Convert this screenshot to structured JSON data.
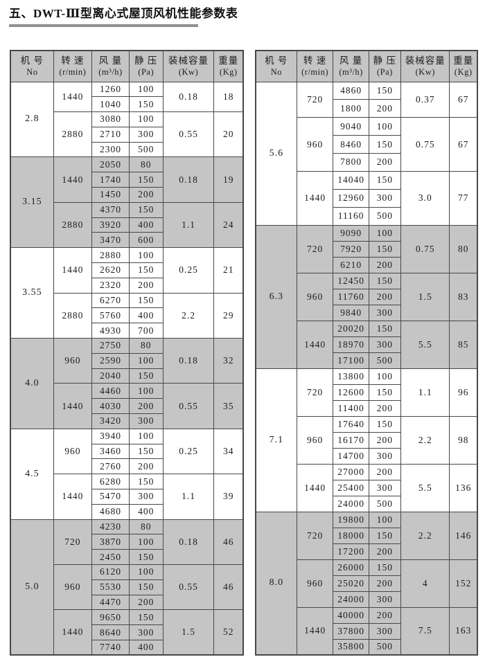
{
  "page": {
    "title": "五、DWT-Ⅲ型离心式屋顶风机性能参数表"
  },
  "colors": {
    "shaded_bg": "#c5c5c5",
    "header_bg": "#c5c5c5",
    "border": "#474747",
    "underline": "#8f8f8f",
    "text": "#1c1c1c",
    "page_bg": "#ffffff"
  },
  "table_header": {
    "columns": [
      {
        "line1": "机 号",
        "line2": "No"
      },
      {
        "line1": "转 速",
        "line2": "(r/min)"
      },
      {
        "line1": "风 量",
        "line2": "(m³/h)"
      },
      {
        "line1": "静 压",
        "line2": "(Pa)"
      },
      {
        "line1": "装械容量",
        "line2": "(Kw)"
      },
      {
        "line1": "重量",
        "line2": "(Kg)"
      }
    ]
  },
  "tables": [
    {
      "id": "left",
      "sections": [
        {
          "no": "2.8",
          "shaded": false,
          "groups": [
            {
              "speed": "1440",
              "rows": [
                [
                  "1260",
                  "100"
                ],
                [
                  "1040",
                  "150"
                ]
              ],
              "kw": "0.18",
              "kg": "18"
            },
            {
              "speed": "2880",
              "rows": [
                [
                  "3080",
                  "100"
                ],
                [
                  "2710",
                  "300"
                ],
                [
                  "2300",
                  "500"
                ]
              ],
              "kw": "0.55",
              "kg": "20"
            }
          ]
        },
        {
          "no": "3.15",
          "shaded": true,
          "groups": [
            {
              "speed": "1440",
              "rows": [
                [
                  "2050",
                  "80"
                ],
                [
                  "1740",
                  "150"
                ],
                [
                  "1450",
                  "200"
                ]
              ],
              "kw": "0.18",
              "kg": "19"
            },
            {
              "speed": "2880",
              "rows": [
                [
                  "4370",
                  "150"
                ],
                [
                  "3920",
                  "400"
                ],
                [
                  "3470",
                  "600"
                ]
              ],
              "kw": "1.1",
              "kg": "24"
            }
          ]
        },
        {
          "no": "3.55",
          "shaded": false,
          "groups": [
            {
              "speed": "1440",
              "rows": [
                [
                  "2880",
                  "100"
                ],
                [
                  "2620",
                  "150"
                ],
                [
                  "2320",
                  "200"
                ]
              ],
              "kw": "0.25",
              "kg": "21"
            },
            {
              "speed": "2880",
              "rows": [
                [
                  "6270",
                  "150"
                ],
                [
                  "5760",
                  "400"
                ],
                [
                  "4930",
                  "700"
                ]
              ],
              "kw": "2.2",
              "kg": "29"
            }
          ]
        },
        {
          "no": "4.0",
          "shaded": true,
          "groups": [
            {
              "speed": "960",
              "rows": [
                [
                  "2750",
                  "80"
                ],
                [
                  "2590",
                  "100"
                ],
                [
                  "2040",
                  "150"
                ]
              ],
              "kw": "0.18",
              "kg": "32"
            },
            {
              "speed": "1440",
              "rows": [
                [
                  "4460",
                  "100"
                ],
                [
                  "4030",
                  "200"
                ],
                [
                  "3420",
                  "300"
                ]
              ],
              "kw": "0.55",
              "kg": "35"
            }
          ]
        },
        {
          "no": "4.5",
          "shaded": false,
          "groups": [
            {
              "speed": "960",
              "rows": [
                [
                  "3940",
                  "100"
                ],
                [
                  "3460",
                  "150"
                ],
                [
                  "2760",
                  "200"
                ]
              ],
              "kw": "0.25",
              "kg": "34"
            },
            {
              "speed": "1440",
              "rows": [
                [
                  "6280",
                  "150"
                ],
                [
                  "5470",
                  "300"
                ],
                [
                  "4680",
                  "400"
                ]
              ],
              "kw": "1.1",
              "kg": "39"
            }
          ]
        },
        {
          "no": "5.0",
          "shaded": true,
          "groups": [
            {
              "speed": "720",
              "rows": [
                [
                  "4230",
                  "80"
                ],
                [
                  "3870",
                  "100"
                ],
                [
                  "2450",
                  "150"
                ]
              ],
              "kw": "0.18",
              "kg": "46"
            },
            {
              "speed": "960",
              "rows": [
                [
                  "6120",
                  "100"
                ],
                [
                  "5530",
                  "150"
                ],
                [
                  "4470",
                  "200"
                ]
              ],
              "kw": "0.55",
              "kg": "46"
            },
            {
              "speed": "1440",
              "rows": [
                [
                  "9650",
                  "150"
                ],
                [
                  "8640",
                  "300"
                ],
                [
                  "7740",
                  "400"
                ]
              ],
              "kw": "1.5",
              "kg": "52"
            }
          ]
        }
      ]
    },
    {
      "id": "right",
      "sections": [
        {
          "no": "5.6",
          "shaded": false,
          "groups": [
            {
              "speed": "720",
              "rows": [
                [
                  "4860",
                  "150"
                ],
                [
                  "1800",
                  "200"
                ]
              ],
              "kw": "0.37",
              "kg": "67"
            },
            {
              "speed": "960",
              "rows": [
                [
                  "9040",
                  "100"
                ],
                [
                  "8460",
                  "150"
                ],
                [
                  "7800",
                  "200"
                ]
              ],
              "kw": "0.75",
              "kg": "67"
            },
            {
              "speed": "1440",
              "rows": [
                [
                  "14040",
                  "150"
                ],
                [
                  "12960",
                  "300"
                ],
                [
                  "11160",
                  "500"
                ]
              ],
              "kw": "3.0",
              "kg": "77"
            }
          ]
        },
        {
          "no": "6.3",
          "shaded": true,
          "groups": [
            {
              "speed": "720",
              "rows": [
                [
                  "9090",
                  "100"
                ],
                [
                  "7920",
                  "150"
                ],
                [
                  "6210",
                  "200"
                ]
              ],
              "kw": "0.75",
              "kg": "80"
            },
            {
              "speed": "960",
              "rows": [
                [
                  "12450",
                  "150"
                ],
                [
                  "11760",
                  "200"
                ],
                [
                  "9840",
                  "300"
                ]
              ],
              "kw": "1.5",
              "kg": "83"
            },
            {
              "speed": "1440",
              "rows": [
                [
                  "20020",
                  "150"
                ],
                [
                  "18970",
                  "300"
                ],
                [
                  "17100",
                  "500"
                ]
              ],
              "kw": "5.5",
              "kg": "85"
            }
          ]
        },
        {
          "no": "7.1",
          "shaded": false,
          "groups": [
            {
              "speed": "720",
              "rows": [
                [
                  "13800",
                  "100"
                ],
                [
                  "12600",
                  "150"
                ],
                [
                  "11400",
                  "200"
                ]
              ],
              "kw": "1.1",
              "kg": "96"
            },
            {
              "speed": "960",
              "rows": [
                [
                  "17640",
                  "150"
                ],
                [
                  "16170",
                  "200"
                ],
                [
                  "14700",
                  "300"
                ]
              ],
              "kw": "2.2",
              "kg": "98"
            },
            {
              "speed": "1440",
              "rows": [
                [
                  "27000",
                  "200"
                ],
                [
                  "25400",
                  "300"
                ],
                [
                  "24000",
                  "500"
                ]
              ],
              "kw": "5.5",
              "kg": "136"
            }
          ]
        },
        {
          "no": "8.0",
          "shaded": true,
          "groups": [
            {
              "speed": "720",
              "rows": [
                [
                  "19800",
                  "100"
                ],
                [
                  "18000",
                  "150"
                ],
                [
                  "17200",
                  "200"
                ]
              ],
              "kw": "2.2",
              "kg": "146"
            },
            {
              "speed": "960",
              "rows": [
                [
                  "26000",
                  "150"
                ],
                [
                  "25020",
                  "200"
                ],
                [
                  "24000",
                  "300"
                ]
              ],
              "kw": "4",
              "kg": "152"
            },
            {
              "speed": "1440",
              "rows": [
                [
                  "40000",
                  "200"
                ],
                [
                  "37800",
                  "300"
                ],
                [
                  "35800",
                  "500"
                ]
              ],
              "kw": "7.5",
              "kg": "163"
            }
          ]
        }
      ]
    }
  ]
}
